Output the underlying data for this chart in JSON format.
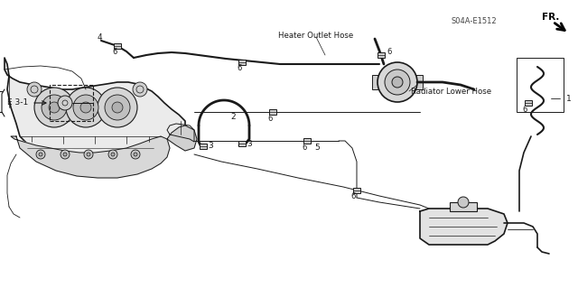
{
  "bg_color": "#ffffff",
  "line_color": "#1a1a1a",
  "label_color": "#1a1a1a",
  "part_code": "S04A-E1512",
  "figsize": [
    6.4,
    3.19
  ],
  "dpi": 100,
  "labels": {
    "radiator_lower_hose": "Radiator Lower Hose",
    "heater_outlet_hose": "Heater Outlet Hose",
    "e3_1": "E 3-1",
    "fr": "FR.",
    "n1": "1",
    "n2": "2",
    "n3": "3",
    "n4": "4",
    "n5": "5",
    "n6": "6"
  }
}
